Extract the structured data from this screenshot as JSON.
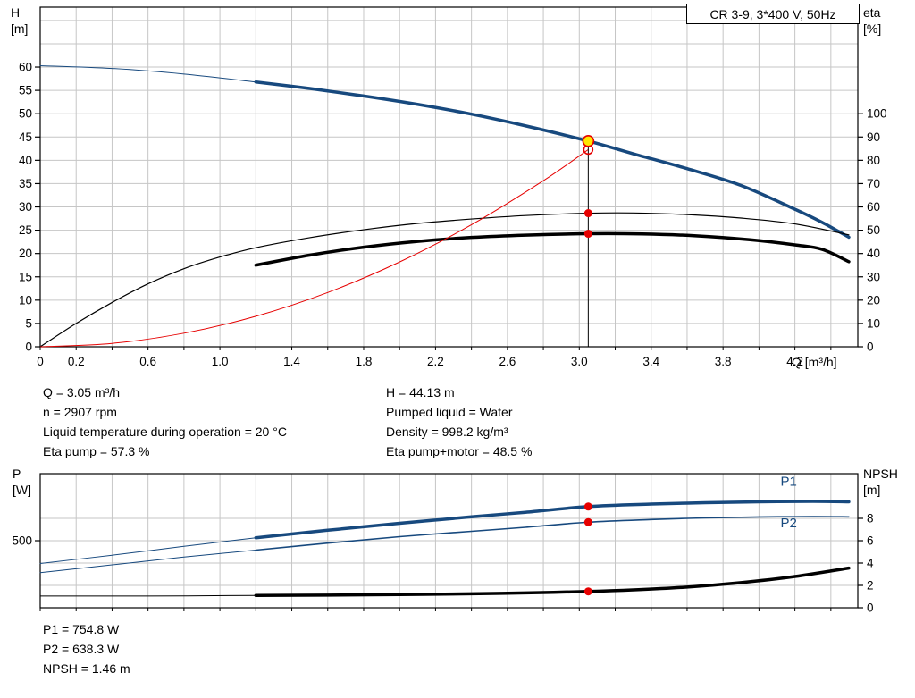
{
  "header": {
    "title": "CR 3-9, 3*400 V, 50Hz"
  },
  "colors": {
    "grid": "#c6c6c6",
    "axis": "#000000",
    "blue": "#17497e",
    "red": "#e60000",
    "yellow": "#ffe600"
  },
  "info": {
    "q": "Q = 3.05 m³/h",
    "n": "n = 2907 rpm",
    "temp": "Liquid temperature during operation = 20 °C",
    "eta_pump": "Eta pump = 57.3 %",
    "h": "H = 44.13 m",
    "liquid": "Pumped liquid = Water",
    "density": "Density = 998.2 kg/m³",
    "eta_total": "Eta pump+motor = 48.5 %",
    "p1": "P1 = 754.8 W",
    "p2": "P2 = 638.3 W",
    "npsh": "NPSH = 1.46 m"
  },
  "chart_data": [
    {
      "name": "hq-eta-chart",
      "type": "line",
      "title": "CR 3-9, 3*400 V, 50Hz",
      "x_axis": {
        "label": "Q [m³/h]",
        "min": 0,
        "max": 4.55,
        "grid_step": 0.2,
        "ticks": [
          {
            "v": 0,
            "t": "0"
          },
          {
            "v": 0.2,
            "t": "0.2"
          },
          {
            "v": 0.6,
            "t": "0.6"
          },
          {
            "v": 1.0,
            "t": "1.0"
          },
          {
            "v": 1.4,
            "t": "1.4"
          },
          {
            "v": 1.8,
            "t": "1.8"
          },
          {
            "v": 2.2,
            "t": "2.2"
          },
          {
            "v": 2.6,
            "t": "2.6"
          },
          {
            "v": 3.0,
            "t": "3.0"
          },
          {
            "v": 3.4,
            "t": "3.4"
          },
          {
            "v": 3.8,
            "t": "3.8"
          },
          {
            "v": 4.2,
            "t": "4.2"
          }
        ]
      },
      "left_axis": {
        "name": "H",
        "unit": "[m]",
        "min": 0,
        "max": 72.85,
        "ticks": [
          0,
          5,
          10,
          15,
          20,
          25,
          30,
          35,
          40,
          45,
          50,
          55,
          60
        ]
      },
      "right_axis": {
        "name": "eta",
        "unit": "[%]",
        "min": 0,
        "max": 145.7,
        "ticks": [
          0,
          10,
          20,
          30,
          40,
          50,
          60,
          70,
          80,
          90,
          100
        ]
      },
      "hgrid": {
        "axis": "left",
        "values": [
          5,
          10,
          15,
          20,
          25,
          30,
          35,
          40,
          45,
          50,
          55,
          60,
          65,
          70
        ]
      },
      "series": [
        {
          "name": "hq-curve-low-flow",
          "axis": "left",
          "color": "#17497e",
          "width": 1,
          "points": [
            [
              0,
              60.3
            ],
            [
              0.4,
              59.7
            ],
            [
              0.8,
              58.5
            ],
            [
              1.2,
              56.8
            ]
          ]
        },
        {
          "name": "hq-curve",
          "axis": "left",
          "color": "#17497e",
          "width": 3.5,
          "points": [
            [
              1.2,
              56.8
            ],
            [
              1.5,
              55.4
            ],
            [
              1.8,
              53.8
            ],
            [
              2.1,
              52.0
            ],
            [
              2.4,
              49.9
            ],
            [
              2.7,
              47.4
            ],
            [
              3.05,
              44.13
            ],
            [
              3.3,
              41.4
            ],
            [
              3.6,
              38.2
            ],
            [
              3.9,
              34.6
            ],
            [
              4.2,
              29.5
            ],
            [
              4.35,
              26.7
            ],
            [
              4.5,
              23.5
            ]
          ]
        },
        {
          "name": "eta-pump-curve",
          "axis": "right",
          "color": "#000000",
          "width": 1.2,
          "points": [
            [
              0,
              0
            ],
            [
              0.2,
              10
            ],
            [
              0.4,
              19
            ],
            [
              0.6,
              27
            ],
            [
              0.8,
              33.5
            ],
            [
              1.0,
              38.5
            ],
            [
              1.2,
              42.5
            ],
            [
              1.5,
              46.8
            ],
            [
              1.8,
              50.2
            ],
            [
              2.1,
              52.9
            ],
            [
              2.4,
              54.8
            ],
            [
              2.7,
              56.3
            ],
            [
              3.05,
              57.3
            ],
            [
              3.3,
              57.4
            ],
            [
              3.6,
              56.7
            ],
            [
              3.9,
              55.2
            ],
            [
              4.2,
              52.7
            ],
            [
              4.5,
              48
            ]
          ]
        },
        {
          "name": "eta-pump-motor-curve",
          "axis": "right",
          "color": "#000000",
          "width": 3.5,
          "points": [
            [
              1.2,
              35
            ],
            [
              1.5,
              39.3
            ],
            [
              1.8,
              42.7
            ],
            [
              2.1,
              45.2
            ],
            [
              2.4,
              46.9
            ],
            [
              2.7,
              47.9
            ],
            [
              3.05,
              48.5
            ],
            [
              3.35,
              48.4
            ],
            [
              3.65,
              47.6
            ],
            [
              3.95,
              45.9
            ],
            [
              4.2,
              43.7
            ],
            [
              4.35,
              41.8
            ],
            [
              4.5,
              36.5
            ]
          ]
        },
        {
          "name": "system-curve",
          "axis": "left",
          "color": "#e60000",
          "width": 1,
          "points": [
            [
              0,
              0
            ],
            [
              0.4,
              0.73
            ],
            [
              0.8,
              2.91
            ],
            [
              1.2,
              6.55
            ],
            [
              1.6,
              11.64
            ],
            [
              2.0,
              18.19
            ],
            [
              2.4,
              26.18
            ],
            [
              2.8,
              35.63
            ],
            [
              3.05,
              42.3
            ]
          ]
        },
        {
          "name": "duty-point-line",
          "axis": "left",
          "color": "#000000",
          "width": 1,
          "points": [
            [
              3.05,
              0
            ],
            [
              3.05,
              44.13
            ]
          ]
        }
      ],
      "markers": [
        {
          "name": "requested-duty-point",
          "x": 3.05,
          "y": 42.3,
          "axis": "left",
          "r": 5,
          "fill": "none",
          "stroke": "#e60000"
        },
        {
          "name": "duty-point",
          "x": 3.05,
          "y": 44.13,
          "axis": "left",
          "r": 6,
          "fill": "#ffe600",
          "stroke": "#e60000"
        },
        {
          "name": "eta-pump-point",
          "x": 3.05,
          "y": 57.3,
          "axis": "right",
          "r": 4.5,
          "fill": "#e60000",
          "stroke": "none"
        },
        {
          "name": "eta-pump-motor-point",
          "x": 3.05,
          "y": 48.5,
          "axis": "right",
          "r": 4.5,
          "fill": "#e60000",
          "stroke": "none"
        }
      ],
      "labels": []
    },
    {
      "name": "power-npsh-chart",
      "type": "line",
      "title": "",
      "x_axis": {
        "label": "",
        "min": 0,
        "max": 4.55,
        "grid_step": 0.2,
        "ticks": []
      },
      "left_axis": {
        "name": "P",
        "unit": "[W]",
        "min": 0,
        "max": 1000,
        "ticks": [
          500
        ]
      },
      "right_axis": {
        "name": "NPSH",
        "unit": "[m]",
        "min": 0,
        "max": 12,
        "ticks": [
          0,
          2,
          4,
          6,
          8
        ]
      },
      "hgrid": {
        "axis": "right",
        "values": [
          2,
          4,
          6,
          8
        ]
      },
      "series": [
        {
          "name": "p1-curve-low-flow",
          "axis": "left",
          "color": "#17497e",
          "width": 1,
          "points": [
            [
              0,
              330
            ],
            [
              0.4,
              392
            ],
            [
              0.8,
              458
            ],
            [
              1.2,
              522
            ]
          ]
        },
        {
          "name": "p1-curve",
          "axis": "left",
          "color": "#17497e",
          "width": 3.5,
          "points": [
            [
              1.2,
              522
            ],
            [
              1.6,
              578
            ],
            [
              2.0,
              630
            ],
            [
              2.4,
              678
            ],
            [
              2.7,
              712
            ],
            [
              3.05,
              754.8
            ],
            [
              3.4,
              773
            ],
            [
              3.7,
              783
            ],
            [
              4.0,
              790
            ],
            [
              4.3,
              793
            ],
            [
              4.5,
              790
            ]
          ]
        },
        {
          "name": "p2-curve-low-flow",
          "axis": "left",
          "color": "#17497e",
          "width": 1,
          "points": [
            [
              0,
              262
            ],
            [
              0.4,
              320
            ],
            [
              0.8,
              378
            ],
            [
              1.2,
              430
            ]
          ]
        },
        {
          "name": "p2-curve",
          "axis": "left",
          "color": "#17497e",
          "width": 1.6,
          "points": [
            [
              1.2,
              430
            ],
            [
              1.6,
              482
            ],
            [
              2.0,
              530
            ],
            [
              2.4,
              570
            ],
            [
              2.7,
              600
            ],
            [
              3.05,
              638.3
            ],
            [
              3.4,
              658
            ],
            [
              3.7,
              670
            ],
            [
              4.0,
              677
            ],
            [
              4.3,
              680
            ],
            [
              4.5,
              678
            ]
          ]
        },
        {
          "name": "npsh-curve-low-flow",
          "axis": "right",
          "color": "#000000",
          "width": 1,
          "points": [
            [
              0,
              1.05
            ],
            [
              0.6,
              1.05
            ],
            [
              1.2,
              1.1
            ]
          ]
        },
        {
          "name": "npsh-curve",
          "axis": "right",
          "color": "#000000",
          "width": 3.5,
          "points": [
            [
              1.2,
              1.1
            ],
            [
              1.6,
              1.13
            ],
            [
              2.0,
              1.18
            ],
            [
              2.4,
              1.25
            ],
            [
              2.7,
              1.33
            ],
            [
              3.05,
              1.46
            ],
            [
              3.3,
              1.6
            ],
            [
              3.6,
              1.85
            ],
            [
              3.9,
              2.25
            ],
            [
              4.2,
              2.8
            ],
            [
              4.5,
              3.55
            ]
          ]
        }
      ],
      "markers": [
        {
          "name": "p1-point",
          "x": 3.05,
          "y": 754.8,
          "axis": "left",
          "r": 4.5,
          "fill": "#e60000",
          "stroke": "none"
        },
        {
          "name": "p2-point",
          "x": 3.05,
          "y": 638.3,
          "axis": "left",
          "r": 4.5,
          "fill": "#e60000",
          "stroke": "none"
        },
        {
          "name": "npsh-point",
          "x": 3.05,
          "y": 1.46,
          "axis": "right",
          "r": 4.5,
          "fill": "#e60000",
          "stroke": "none"
        }
      ],
      "labels": [
        {
          "name": "p1-curve-label",
          "x": 4.12,
          "y": 910,
          "axis": "left",
          "text": "P1",
          "color": "#17497e"
        },
        {
          "name": "p2-curve-label",
          "x": 4.12,
          "y": 600,
          "axis": "left",
          "text": "P2",
          "color": "#17497e"
        }
      ]
    }
  ]
}
